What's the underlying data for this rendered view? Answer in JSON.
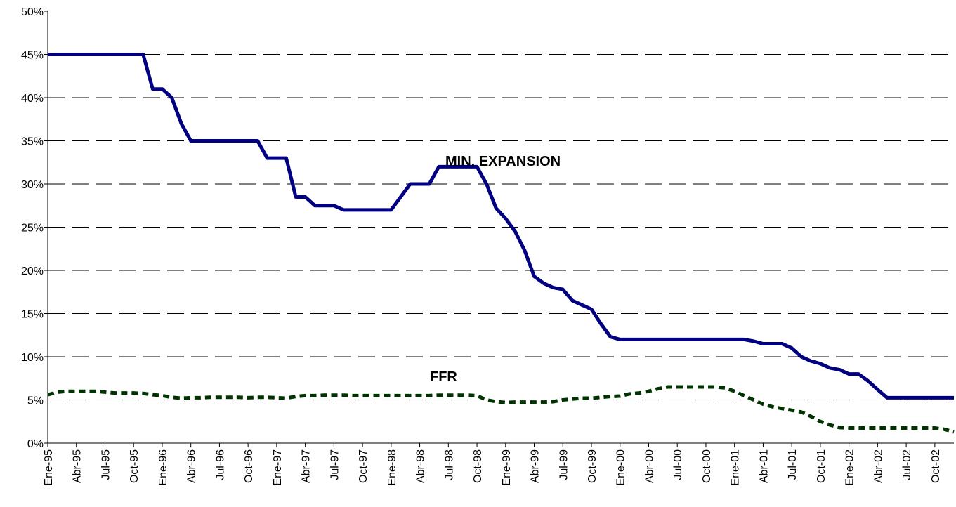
{
  "chart_data": {
    "type": "line",
    "categories": [
      "Ene-95",
      null,
      null,
      "Abr-95",
      null,
      null,
      "Jul-95",
      null,
      null,
      "Oct-95",
      null,
      null,
      "Ene-96",
      null,
      null,
      "Abr-96",
      null,
      null,
      "Jul-96",
      null,
      null,
      "Oct-96",
      null,
      null,
      "Ene-97",
      null,
      null,
      "Abr-97",
      null,
      null,
      "Jul-97",
      null,
      null,
      "Oct-97",
      null,
      null,
      "Ene-98",
      null,
      null,
      "Abr-98",
      null,
      null,
      "Jul-98",
      null,
      null,
      "Oct-98",
      null,
      null,
      "Ene-99",
      null,
      null,
      "Abr-99",
      null,
      null,
      "Jul-99",
      null,
      null,
      "Oct-99",
      null,
      null,
      "Ene-00",
      null,
      null,
      "Abr-00",
      null,
      null,
      "Jul-00",
      null,
      null,
      "Oct-00",
      null,
      null,
      "Ene-01",
      null,
      null,
      "Abr-01",
      null,
      null,
      "Jul-01",
      null,
      null,
      "Oct-01",
      null,
      null,
      "Ene-02",
      null,
      null,
      "Abr-02",
      null,
      null,
      "Jul-02",
      null,
      null,
      "Oct-02",
      null,
      null
    ],
    "series": [
      {
        "name": "MIN. EXPANSION",
        "color": "#000080",
        "dashed": false,
        "values": [
          45,
          45,
          45,
          45,
          45,
          45,
          45,
          45,
          45,
          45,
          45,
          41,
          41,
          40,
          37,
          35,
          35,
          35,
          35,
          35,
          35,
          35,
          35,
          33,
          33,
          33,
          28.5,
          28.5,
          27.5,
          27.5,
          27.5,
          27,
          27,
          27,
          27,
          27,
          27,
          28.5,
          30,
          30,
          30,
          32,
          32,
          32,
          32,
          32,
          30,
          27.2,
          26,
          24.5,
          22.3,
          19.3,
          18.5,
          18,
          17.8,
          16.5,
          16,
          15.5,
          13.8,
          12.3,
          12,
          12,
          12,
          12,
          12,
          12,
          12,
          12,
          12,
          12,
          12,
          12,
          12,
          12,
          11.8,
          11.5,
          11.5,
          11.5,
          11,
          10,
          9.5,
          9.2,
          8.7,
          8.5,
          8,
          8,
          7.2,
          6.2,
          5.25,
          5.25,
          5.25,
          5.25,
          5.25,
          5.25,
          5.25,
          5.25
        ]
      },
      {
        "name": "FFR",
        "color": "#003300",
        "dashed": true,
        "values": [
          5.6,
          5.9,
          6,
          6,
          6,
          6,
          5.9,
          5.8,
          5.8,
          5.8,
          5.75,
          5.6,
          5.5,
          5.3,
          5.2,
          5.25,
          5.25,
          5.3,
          5.3,
          5.3,
          5.3,
          5.25,
          5.3,
          5.3,
          5.25,
          5.2,
          5.4,
          5.5,
          5.5,
          5.55,
          5.55,
          5.55,
          5.5,
          5.5,
          5.5,
          5.5,
          5.5,
          5.5,
          5.5,
          5.5,
          5.5,
          5.55,
          5.55,
          5.55,
          5.55,
          5.5,
          5,
          4.8,
          4.7,
          4.75,
          4.75,
          4.75,
          4.75,
          4.8,
          5,
          5.1,
          5.2,
          5.2,
          5.3,
          5.4,
          5.45,
          5.7,
          5.8,
          6,
          6.3,
          6.5,
          6.5,
          6.5,
          6.5,
          6.5,
          6.5,
          6.4,
          6,
          5.5,
          5,
          4.5,
          4.2,
          4,
          3.8,
          3.6,
          3.1,
          2.5,
          2.1,
          1.8,
          1.75,
          1.75,
          1.75,
          1.75,
          1.75,
          1.75,
          1.75,
          1.75,
          1.75,
          1.75,
          1.6,
          1.3
        ]
      }
    ],
    "ylim": [
      0,
      50
    ],
    "yticks": [
      {
        "value": 0,
        "label": "0%"
      },
      {
        "value": 5,
        "label": "5%"
      },
      {
        "value": 10,
        "label": "10%"
      },
      {
        "value": 15,
        "label": "15%"
      },
      {
        "value": 20,
        "label": "20%"
      },
      {
        "value": 25,
        "label": "25%"
      },
      {
        "value": 30,
        "label": "30%"
      },
      {
        "value": 35,
        "label": "35%"
      },
      {
        "value": 40,
        "label": "40%"
      },
      {
        "value": 45,
        "label": "45%"
      },
      {
        "value": 50,
        "label": "50%"
      }
    ],
    "grid": true
  }
}
